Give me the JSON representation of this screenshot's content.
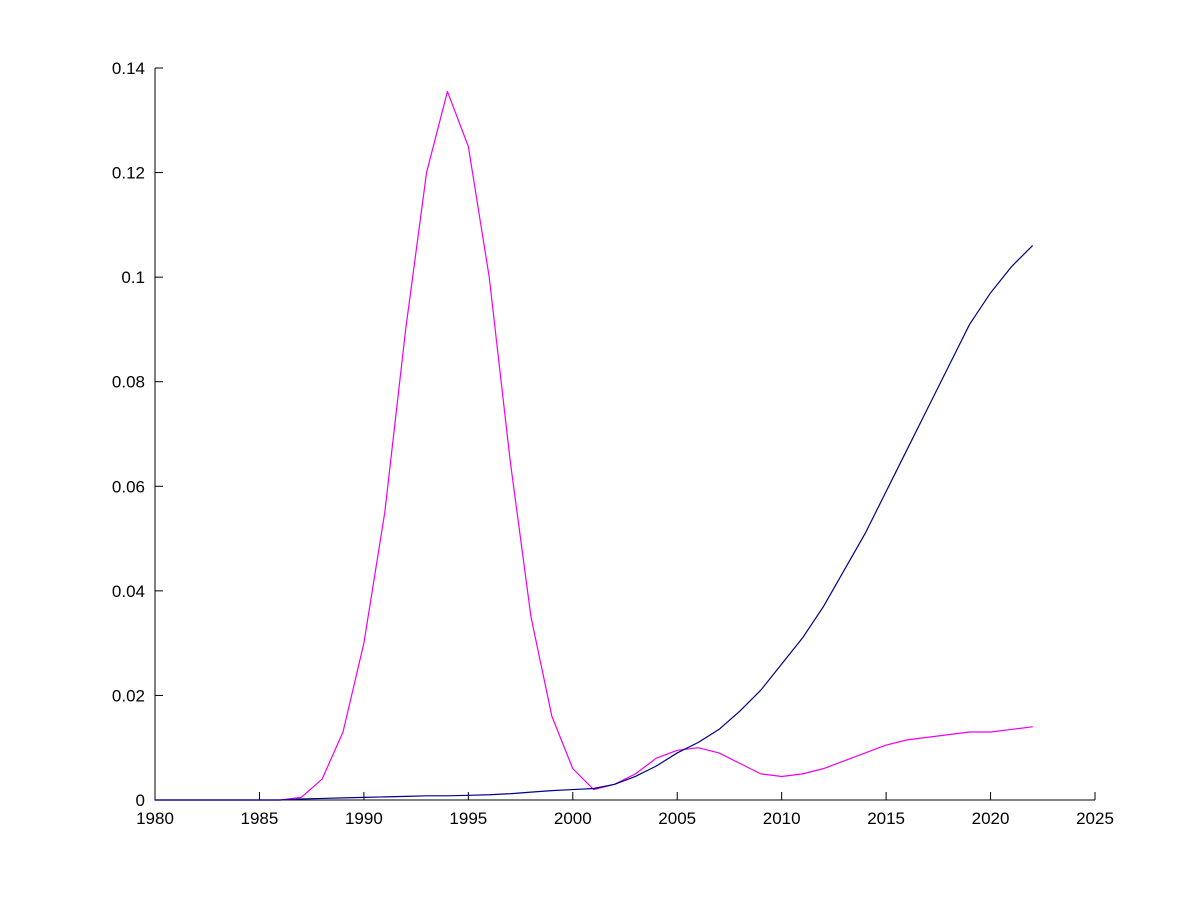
{
  "chart_data": {
    "type": "line",
    "title": "",
    "xlabel": "",
    "ylabel": "",
    "grid": false,
    "legend": "none",
    "background_color": "#ffffff",
    "axis_color": "#000000",
    "xlim": [
      1980,
      2025
    ],
    "ylim": [
      0,
      0.14
    ],
    "xticks": [
      1980,
      1985,
      1990,
      1995,
      2000,
      2005,
      2010,
      2015,
      2020,
      2025
    ],
    "xtick_labels": [
      "1980",
      "1985",
      "1990",
      "1995",
      "2000",
      "2005",
      "2010",
      "2015",
      "2020",
      "2025"
    ],
    "yticks": [
      0,
      0.02,
      0.04,
      0.06,
      0.08,
      0.1,
      0.12,
      0.14
    ],
    "ytick_labels": [
      "0",
      "0.02",
      "0.04",
      "0.06",
      "0.08",
      "0.1",
      "0.12",
      "0.14"
    ],
    "x": [
      1980,
      1981,
      1982,
      1983,
      1984,
      1985,
      1986,
      1987,
      1988,
      1989,
      1990,
      1991,
      1992,
      1993,
      1994,
      1995,
      1996,
      1997,
      1998,
      1999,
      2000,
      2001,
      2002,
      2003,
      2004,
      2005,
      2006,
      2007,
      2008,
      2009,
      2010,
      2011,
      2012,
      2013,
      2014,
      2015,
      2016,
      2017,
      2018,
      2019,
      2020,
      2021,
      2022
    ],
    "series": [
      {
        "name": "magenta-series",
        "color": "#ee00ee",
        "values": [
          0,
          0,
          0,
          0,
          0,
          0,
          0,
          0.0005,
          0.004,
          0.013,
          0.03,
          0.055,
          0.09,
          0.12,
          0.1355,
          0.125,
          0.1,
          0.065,
          0.035,
          0.016,
          0.006,
          0.002,
          0.003,
          0.005,
          0.008,
          0.0095,
          0.01,
          0.009,
          0.007,
          0.005,
          0.0045,
          0.005,
          0.006,
          0.0075,
          0.009,
          0.0105,
          0.0115,
          0.012,
          0.0125,
          0.013,
          0.013,
          0.0135,
          0.014
        ]
      },
      {
        "name": "blue-series",
        "color": "#00008b",
        "values": [
          0,
          0,
          0,
          0,
          0,
          0,
          0,
          0.0002,
          0.0003,
          0.0004,
          0.0005,
          0.0006,
          0.0007,
          0.0008,
          0.0008,
          0.0009,
          0.001,
          0.0012,
          0.0015,
          0.0018,
          0.002,
          0.0022,
          0.003,
          0.0045,
          0.0065,
          0.009,
          0.011,
          0.0135,
          0.017,
          0.021,
          0.026,
          0.031,
          0.037,
          0.044,
          0.051,
          0.059,
          0.067,
          0.075,
          0.083,
          0.091,
          0.097,
          0.102,
          0.106
        ]
      }
    ]
  }
}
